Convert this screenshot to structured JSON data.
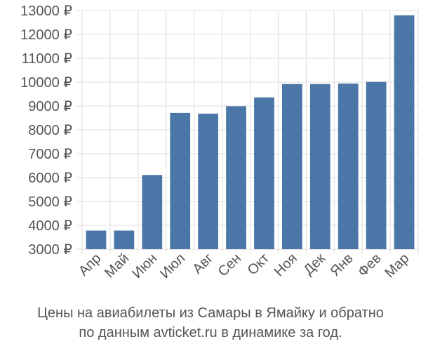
{
  "chart_data": {
    "type": "bar",
    "categories": [
      "Апр",
      "Май",
      "Июн",
      "Июл",
      "Авг",
      "Сен",
      "Окт",
      "Ноя",
      "Дек",
      "Янв",
      "Фев",
      "Мар"
    ],
    "values": [
      3780,
      3780,
      6110,
      8710,
      8680,
      8990,
      9360,
      9920,
      9920,
      9940,
      10010,
      12800
    ],
    "ylim": [
      3000,
      13000
    ],
    "yticks": [
      3000,
      4000,
      5000,
      6000,
      7000,
      8000,
      9000,
      10000,
      11000,
      12000,
      13000
    ],
    "y_tick_labels": [
      "3000 ₽",
      "4000 ₽",
      "5000 ₽",
      "6000 ₽",
      "7000 ₽",
      "8000 ₽",
      "9000 ₽",
      "10000 ₽",
      "11000 ₽",
      "12000 ₽",
      "13000 ₽"
    ],
    "grid": true,
    "bar_color": "#4b76a8",
    "grid_color": "#dddddd",
    "label_color": "#555555",
    "title": "",
    "xlabel": "",
    "ylabel": ""
  },
  "caption": {
    "line1": "Цены на авиабилеты из Самары в Ямайку и обратно",
    "line2": "по данным avticket.ru в динамике за год."
  }
}
